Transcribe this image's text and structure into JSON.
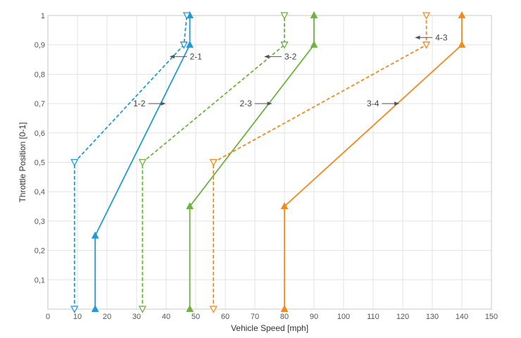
{
  "chart_data": {
    "type": "line",
    "title": "",
    "xlabel": "Vehicle Speed [mph]",
    "ylabel": "Throttle Position [0-1]",
    "xlim": [
      0,
      150
    ],
    "ylim": [
      0,
      1
    ],
    "x_ticks": [
      0,
      10,
      20,
      30,
      40,
      50,
      60,
      70,
      80,
      90,
      100,
      110,
      120,
      130,
      140,
      150
    ],
    "y_ticks": [
      {
        "value": 0.1,
        "label": "0,1"
      },
      {
        "value": 0.2,
        "label": "0,2"
      },
      {
        "value": 0.3,
        "label": "0,3"
      },
      {
        "value": 0.4,
        "label": "0,4"
      },
      {
        "value": 0.5,
        "label": "0,5"
      },
      {
        "value": 0.6,
        "label": "0,6"
      },
      {
        "value": 0.7,
        "label": "0,7"
      },
      {
        "value": 0.8,
        "label": "0,8"
      },
      {
        "value": 0.9,
        "label": "0,9"
      },
      {
        "value": 1.0,
        "label": "1"
      }
    ],
    "grid": true,
    "legend": "none",
    "series": [
      {
        "key": "upshift-1-2",
        "color": "#1f9bd6",
        "dash": false,
        "marker": "triangle-up-filled",
        "x": [
          16,
          16,
          48,
          48
        ],
        "y": [
          0,
          0.25,
          0.9,
          1.0
        ]
      },
      {
        "key": "downshift-2-1",
        "color": "#1f9bd6",
        "dash": true,
        "marker": "triangle-down-open",
        "x": [
          9,
          9,
          46,
          47
        ],
        "y": [
          0,
          0.5,
          0.9,
          1.0
        ]
      },
      {
        "key": "upshift-2-3",
        "color": "#6db33f",
        "dash": false,
        "marker": "triangle-up-filled",
        "x": [
          48,
          48,
          90,
          90
        ],
        "y": [
          0,
          0.35,
          0.9,
          1.0
        ]
      },
      {
        "key": "downshift-3-2",
        "color": "#6db33f",
        "dash": true,
        "marker": "triangle-down-open",
        "x": [
          32,
          32,
          80,
          80
        ],
        "y": [
          0,
          0.5,
          0.9,
          1.0
        ]
      },
      {
        "key": "upshift-3-4",
        "color": "#f28a1e",
        "dash": false,
        "marker": "triangle-up-filled",
        "x": [
          80,
          80,
          140,
          140
        ],
        "y": [
          0,
          0.35,
          0.9,
          1.0
        ]
      },
      {
        "key": "downshift-4-3",
        "color": "#f28a1e",
        "dash": true,
        "marker": "triangle-down-open",
        "x": [
          56,
          56,
          128,
          128
        ],
        "y": [
          0,
          0.5,
          0.9,
          1.0
        ]
      }
    ],
    "annotations": [
      {
        "text": "2-1",
        "x": 48,
        "y": 0.86,
        "arrow": "left"
      },
      {
        "text": "3-2",
        "x": 80,
        "y": 0.86,
        "arrow": "left"
      },
      {
        "text": "4-3",
        "x": 131,
        "y": 0.925,
        "arrow": "left"
      },
      {
        "text": "1-2",
        "x": 33,
        "y": 0.7,
        "arrow": "right"
      },
      {
        "text": "2-3",
        "x": 69,
        "y": 0.7,
        "arrow": "right"
      },
      {
        "text": "3-4",
        "x": 112,
        "y": 0.7,
        "arrow": "right"
      }
    ]
  }
}
